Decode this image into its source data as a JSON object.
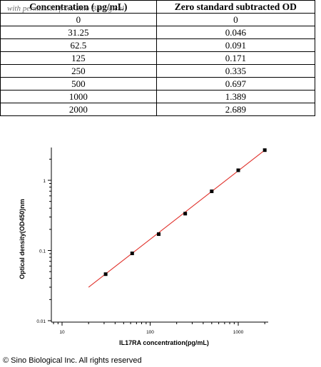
{
  "table": {
    "headers": [
      "Concentration ( pg/mL)",
      "Zero standard subtracted OD"
    ],
    "watermark": "with permission from Sino Biological",
    "rows": [
      [
        "0",
        "0"
      ],
      [
        "31.25",
        "0.046"
      ],
      [
        "62.5",
        "0.091"
      ],
      [
        "125",
        "0.171"
      ],
      [
        "250",
        "0.335"
      ],
      [
        "500",
        "0.697"
      ],
      [
        "1000",
        "1.389"
      ],
      [
        "2000",
        "2.689"
      ]
    ]
  },
  "chart_data": {
    "type": "scatter",
    "xlabel": "IL17RA concentration(pg/mL)",
    "ylabel": "Optical  density(OD450)nm",
    "x_scale": "log",
    "y_scale": "log",
    "xlim": [
      10,
      2000
    ],
    "ylim": [
      0.01,
      2.689
    ],
    "x_tick_labels": [
      "10",
      "100",
      "1000"
    ],
    "y_tick_labels": [
      "0.01",
      "0.1",
      "1"
    ],
    "grid": false,
    "series": [
      {
        "x": [
          31.25,
          62.5,
          125,
          250,
          500,
          1000,
          2000
        ],
        "y": [
          0.046,
          0.091,
          0.171,
          0.335,
          0.697,
          1.389,
          2.689
        ],
        "marker": "square",
        "color": "#000000"
      }
    ],
    "fit_line": {
      "x": [
        20,
        2000
      ],
      "y": [
        0.03,
        2.689
      ],
      "color": "#e0302a"
    }
  },
  "footer": {
    "copyright": "© Sino Biological Inc. All rights reserved"
  }
}
